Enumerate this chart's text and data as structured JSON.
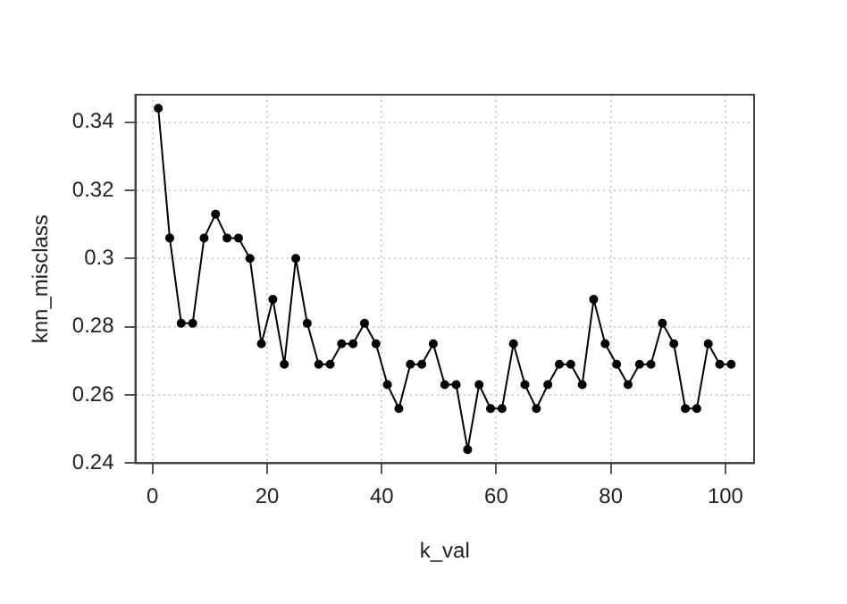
{
  "chart_data": {
    "type": "line",
    "xlabel": "k_val",
    "ylabel": "knn_misclass",
    "x": [
      1,
      3,
      5,
      7,
      9,
      11,
      13,
      15,
      17,
      19,
      21,
      23,
      25,
      27,
      29,
      31,
      33,
      35,
      37,
      39,
      41,
      43,
      45,
      47,
      49,
      51,
      53,
      55,
      57,
      59,
      61,
      63,
      65,
      67,
      69,
      71,
      73,
      75,
      77,
      79,
      81,
      83,
      85,
      87,
      89,
      91,
      93,
      95,
      97,
      99,
      101
    ],
    "series": [
      {
        "color": "#000000",
        "values": [
          0.344,
          0.306,
          0.281,
          0.281,
          0.306,
          0.313,
          0.306,
          0.306,
          0.3,
          0.275,
          0.288,
          0.269,
          0.3,
          0.281,
          0.269,
          0.269,
          0.275,
          0.275,
          0.281,
          0.275,
          0.263,
          0.256,
          0.269,
          0.269,
          0.275,
          0.263,
          0.263,
          0.244,
          0.263,
          0.256,
          0.256,
          0.275,
          0.263,
          0.256,
          0.263,
          0.269,
          0.269,
          0.263,
          0.288,
          0.275,
          0.269,
          0.263,
          0.269,
          0.269,
          0.281,
          0.275,
          0.256,
          0.256,
          0.275,
          0.269,
          0.269
        ]
      }
    ],
    "xlim": [
      -3,
      105
    ],
    "xticks": [
      0,
      20,
      40,
      60,
      80,
      100
    ],
    "ylim": [
      0.24,
      0.348
    ],
    "yticks": [
      0.24,
      0.26,
      0.28,
      0.3,
      0.32,
      0.34
    ],
    "grid": true,
    "marker": "circle",
    "line_style": "solid",
    "legend": false
  }
}
